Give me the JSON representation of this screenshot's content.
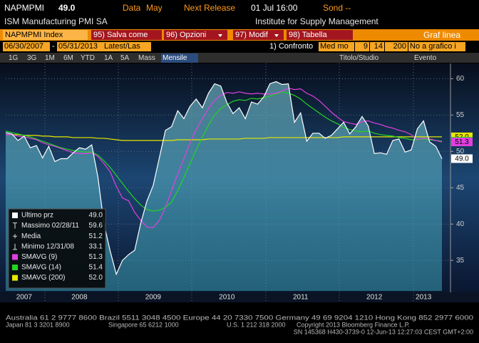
{
  "header": {
    "ticker": "NAPMPMI",
    "last": "49.0",
    "data_label": "Data",
    "data_value": "May",
    "next_release": "Next Release",
    "next_date": "01 Jul 16:00",
    "sond": "Sond --",
    "name": "ISM Manufacturing PMI SA",
    "source": "Institute for Supply Management"
  },
  "toolbar": {
    "security": "NAPMPMI Index",
    "buttons": [
      "95) Salva come",
      "96) Opzioni",
      "97) Modif",
      "98) Tabella"
    ],
    "chart_kind": "Graf linea"
  },
  "settings": {
    "start_date": "06/30/2007",
    "separator": "-",
    "end_date": "05/31/2013",
    "mode": "Latest/Las",
    "compare": "1) Confronto",
    "average": "Med mo",
    "periods": [
      "9",
      "14",
      "200"
    ],
    "plot_option": "No a grafico i"
  },
  "range_bar": {
    "ranges": [
      "1G",
      "3G",
      "1M",
      "6M",
      "YTD",
      "1A",
      "5A",
      "Mass"
    ],
    "frequency": "Mensile",
    "studies": "Titolo/Studio",
    "events": "Evento"
  },
  "chart_data": {
    "type": "line",
    "categories": [
      null,
      null,
      null,
      "2007",
      null,
      null,
      null,
      null,
      null,
      null,
      null,
      null,
      "2008",
      null,
      null,
      null,
      null,
      null,
      null,
      null,
      null,
      null,
      null,
      null,
      "2009",
      null,
      null,
      null,
      null,
      null,
      null,
      null,
      null,
      null,
      null,
      null,
      "2010",
      null,
      null,
      null,
      null,
      null,
      null,
      null,
      null,
      null,
      null,
      null,
      "2011",
      null,
      null,
      null,
      null,
      null,
      null,
      null,
      null,
      null,
      null,
      null,
      "2012",
      null,
      null,
      null,
      null,
      null,
      null,
      null,
      "2013",
      null,
      null,
      null
    ],
    "series": [
      {
        "name": "Ultimo prz",
        "color": "#ffffff",
        "fill": "#3a9fb4",
        "last_label": "49.0",
        "values": [
          52.6,
          52.4,
          51.5,
          52.1,
          50.5,
          50.8,
          49.1,
          50.7,
          48.6,
          49.0,
          49.0,
          49.8,
          50.5,
          50.3,
          50.9,
          46.5,
          40.0,
          36.3,
          33.1,
          35.0,
          35.8,
          36.4,
          40.2,
          43.2,
          45.3,
          49.1,
          52.9,
          53.4,
          55.6,
          54.5,
          56.2,
          57.2,
          56.0,
          58.0,
          59.3,
          59.0,
          56.7,
          55.2,
          56.0,
          54.5,
          56.8,
          56.5,
          57.5,
          59.3,
          59.6,
          59.2,
          59.3,
          54.0,
          55.3,
          51.4,
          52.5,
          52.5,
          51.8,
          52.2,
          53.1,
          54.0,
          52.4,
          53.4,
          54.8,
          53.5,
          49.7,
          49.8,
          49.6,
          51.5,
          51.7,
          49.9,
          50.2,
          53.1,
          54.2,
          51.3,
          50.7,
          49.0
        ]
      },
      {
        "name": "SMAVG (9)",
        "color": "#e040e0",
        "last_label": "51.3",
        "values": [
          52.3,
          52.3,
          52.1,
          52.0,
          51.8,
          51.6,
          51.2,
          50.9,
          50.7,
          50.4,
          50.1,
          49.8,
          49.7,
          49.7,
          49.8,
          49.3,
          48.3,
          47.2,
          45.2,
          43.6,
          43.2,
          41.6,
          40.5,
          39.6,
          39.5,
          40.5,
          42.3,
          44.6,
          46.9,
          49.0,
          51.2,
          53.0,
          54.5,
          55.9,
          57.0,
          57.7,
          58.1,
          58.0,
          58.2,
          58.0,
          57.9,
          58.0,
          57.9,
          57.9,
          58.0,
          58.3,
          58.7,
          58.5,
          58.6,
          58.0,
          57.6,
          57.0,
          56.2,
          55.4,
          54.7,
          54.1,
          53.9,
          53.7,
          54.1,
          54.2,
          53.9,
          53.7,
          53.4,
          53.2,
          52.9,
          52.7,
          52.3,
          51.6,
          51.8,
          51.7,
          51.5,
          51.3
        ]
      },
      {
        "name": "SMAVG (14)",
        "color": "#22d422",
        "last_label": "51.4",
        "values": [
          52.8,
          52.6,
          52.4,
          52.2,
          52.0,
          51.7,
          51.4,
          51.1,
          50.8,
          50.5,
          50.3,
          50.1,
          50.0,
          49.9,
          49.9,
          49.5,
          48.7,
          47.8,
          46.7,
          45.6,
          44.5,
          43.5,
          42.6,
          42.0,
          41.8,
          41.9,
          42.3,
          43.0,
          44.6,
          46.4,
          48.3,
          50.2,
          51.9,
          53.6,
          55.0,
          55.9,
          56.4,
          56.9,
          57.1,
          57.0,
          57.3,
          57.2,
          57.4,
          57.6,
          57.9,
          58.2,
          58.0,
          57.7,
          57.2,
          56.5,
          55.9,
          55.3,
          54.7,
          54.2,
          53.8,
          53.3,
          53.0,
          52.8,
          52.7,
          52.8,
          52.5,
          52.3,
          52.2,
          52.1,
          51.9,
          51.8,
          51.6,
          51.6,
          51.7,
          51.6,
          51.5,
          51.4
        ]
      },
      {
        "name": "SMAVG (200)",
        "color": "#e8e800",
        "last_label": "52.0",
        "values": [
          52.3,
          52.3,
          52.3,
          52.2,
          52.2,
          52.2,
          52.1,
          52.1,
          52.0,
          52.0,
          52.0,
          51.9,
          51.9,
          51.9,
          51.9,
          51.8,
          51.8,
          51.7,
          51.6,
          51.5,
          51.5,
          51.5,
          51.5,
          51.5,
          51.5,
          51.5,
          51.5,
          51.5,
          51.6,
          51.6,
          51.6,
          51.6,
          51.6,
          51.7,
          51.7,
          51.7,
          51.7,
          51.7,
          51.7,
          51.8,
          51.8,
          51.8,
          51.8,
          51.9,
          51.9,
          51.9,
          51.9,
          51.9,
          51.9,
          51.9,
          51.9,
          51.9,
          51.9,
          51.9,
          51.9,
          52.0,
          52.0,
          52.0,
          52.0,
          52.0,
          52.0,
          52.0,
          52.0,
          52.0,
          52.0,
          52.0,
          52.0,
          52.0,
          52.0,
          52.0,
          52.0,
          52.0
        ]
      }
    ],
    "stats": [
      {
        "label": "Massimo 02/28/11",
        "value": 59.6
      },
      {
        "label": "Media",
        "value": 51.2
      },
      {
        "label": "Minimo 12/31/08",
        "value": 33.1
      }
    ],
    "ylim": [
      30.8,
      61.8
    ],
    "yticks": [
      35,
      40,
      45,
      50,
      55,
      60
    ],
    "grid": true,
    "legend": "lower left"
  },
  "footer": {
    "line1": "Australia 61 2 9777 8600 Brazil 5511 3048 4500 Europe 44 20 7330 7500 Germany 49 69 9204 1210 Hong Kong 852 2977 6000",
    "line2": [
      "Japan 81 3 3201 8900",
      "Singapore 65 6212 1000",
      "U.S. 1 212 318 2000",
      "Copyright 2013 Bloomberg Finance L.P."
    ],
    "line3": "SN 145368 H430-3739-0 12-Jun-13 12:27:03 CEST GMT+2:00"
  }
}
